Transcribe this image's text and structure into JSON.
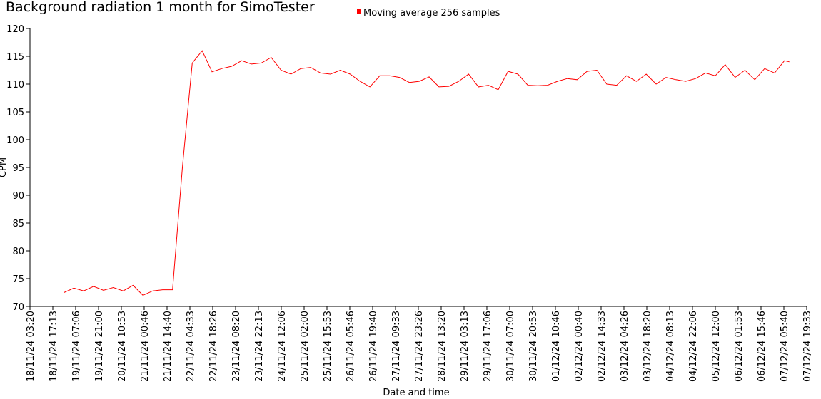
{
  "chart_data": {
    "type": "line",
    "title": "Background radiation 1 month for SimoTester",
    "x_label": "Date and time",
    "y_label": "CPM",
    "legend": "top",
    "grid": false,
    "x": [
      "19/11/24 00:00",
      "19/11/24 06:00",
      "19/11/24 12:00",
      "19/11/24 18:00",
      "20/11/24 00:00",
      "20/11/24 06:00",
      "20/11/24 12:00",
      "20/11/24 18:00",
      "21/11/24 00:00",
      "21/11/24 06:00",
      "21/11/24 12:00",
      "21/11/24 18:00",
      "22/11/24 00:00",
      "22/11/24 06:00",
      "22/11/24 12:00",
      "22/11/24 18:00",
      "23/11/24 00:00",
      "23/11/24 06:00",
      "23/11/24 12:00",
      "23/11/24 18:00",
      "24/11/24 00:00",
      "24/11/24 06:00",
      "24/11/24 12:00",
      "24/11/24 18:00",
      "25/11/24 00:00",
      "25/11/24 06:00",
      "25/11/24 12:00",
      "25/11/24 18:00",
      "26/11/24 00:00",
      "26/11/24 06:00",
      "26/11/24 12:00",
      "26/11/24 18:00",
      "27/11/24 00:00",
      "27/11/24 06:00",
      "27/11/24 12:00",
      "27/11/24 18:00",
      "28/11/24 00:00",
      "28/11/24 06:00",
      "28/11/24 12:00",
      "28/11/24 18:00",
      "29/11/24 00:00",
      "29/11/24 06:00",
      "29/11/24 12:00",
      "29/11/24 18:00",
      "30/11/24 00:00",
      "30/11/24 06:00",
      "30/11/24 12:00",
      "30/11/24 18:00",
      "01/12/24 00:00",
      "01/12/24 06:00",
      "01/12/24 12:00",
      "01/12/24 18:00",
      "02/12/24 00:00",
      "02/12/24 06:00",
      "02/12/24 12:00",
      "02/12/24 18:00",
      "03/12/24 00:00",
      "03/12/24 06:00",
      "03/12/24 12:00",
      "03/12/24 18:00",
      "04/12/24 00:00",
      "04/12/24 06:00",
      "04/12/24 12:00",
      "04/12/24 18:00",
      "05/12/24 00:00",
      "05/12/24 06:00",
      "05/12/24 12:00",
      "05/12/24 18:00",
      "06/12/24 00:00",
      "06/12/24 06:00",
      "06/12/24 12:00",
      "06/12/24 18:00",
      "07/12/24 00:00",
      "07/12/24 06:00",
      "07/12/24 09:00"
    ],
    "series": [
      {
        "name": "Moving average 256 samples",
        "color": "#ff0000",
        "values": [
          72.5,
          73.3,
          72.8,
          73.6,
          72.9,
          73.4,
          72.8,
          73.8,
          72.0,
          72.8,
          73.0,
          73.0,
          95,
          113.8,
          116,
          112.2,
          112.8,
          113.2,
          114.2,
          113.6,
          113.8,
          114.8,
          112.5,
          111.8,
          112.8,
          113.0,
          112.0,
          111.8,
          112.5,
          111.8,
          110.5,
          109.5,
          111.5,
          111.5,
          111.2,
          110.3,
          110.5,
          111.3,
          109.5,
          109.6,
          110.5,
          111.8,
          109.5,
          109.8,
          109.0,
          112.3,
          111.8,
          109.8,
          109.7,
          109.8,
          110.5,
          111.0,
          110.8,
          112.3,
          112.5,
          110.0,
          109.8,
          111.5,
          110.5,
          111.8,
          110.0,
          111.2,
          110.8,
          110.5,
          111.0,
          112.0,
          111.5,
          113.5,
          111.2,
          112.5,
          110.8,
          112.8,
          112.0,
          114.2,
          114.0
        ]
      }
    ],
    "xlim": [
      "18/11/24 03:20",
      "07/12/24 19:33"
    ],
    "xticks": [
      "18/11/24 03:20",
      "18/11/24 17:13",
      "19/11/24 07:06",
      "19/11/24 21:00",
      "20/11/24 10:53",
      "21/11/24 00:46",
      "21/11/24 14:40",
      "22/11/24 04:33",
      "22/11/24 18:26",
      "23/11/24 08:20",
      "23/11/24 22:13",
      "24/11/24 12:06",
      "25/11/24 02:00",
      "25/11/24 15:53",
      "26/11/24 05:46",
      "26/11/24 19:40",
      "27/11/24 09:33",
      "27/11/24 23:26",
      "28/11/24 13:20",
      "29/11/24 03:13",
      "29/11/24 17:06",
      "30/11/24 07:00",
      "30/11/24 20:53",
      "01/12/24 10:46",
      "02/12/24 00:40",
      "02/12/24 14:33",
      "03/12/24 04:26",
      "03/12/24 18:20",
      "04/12/24 08:13",
      "04/12/24 22:06",
      "05/12/24 12:00",
      "06/12/24 01:53",
      "06/12/24 15:46",
      "07/12/24 05:40",
      "07/12/24 19:33"
    ],
    "ylim": [
      70,
      120
    ],
    "yticks": [
      70,
      75,
      80,
      85,
      90,
      95,
      100,
      105,
      110,
      115,
      120
    ]
  }
}
